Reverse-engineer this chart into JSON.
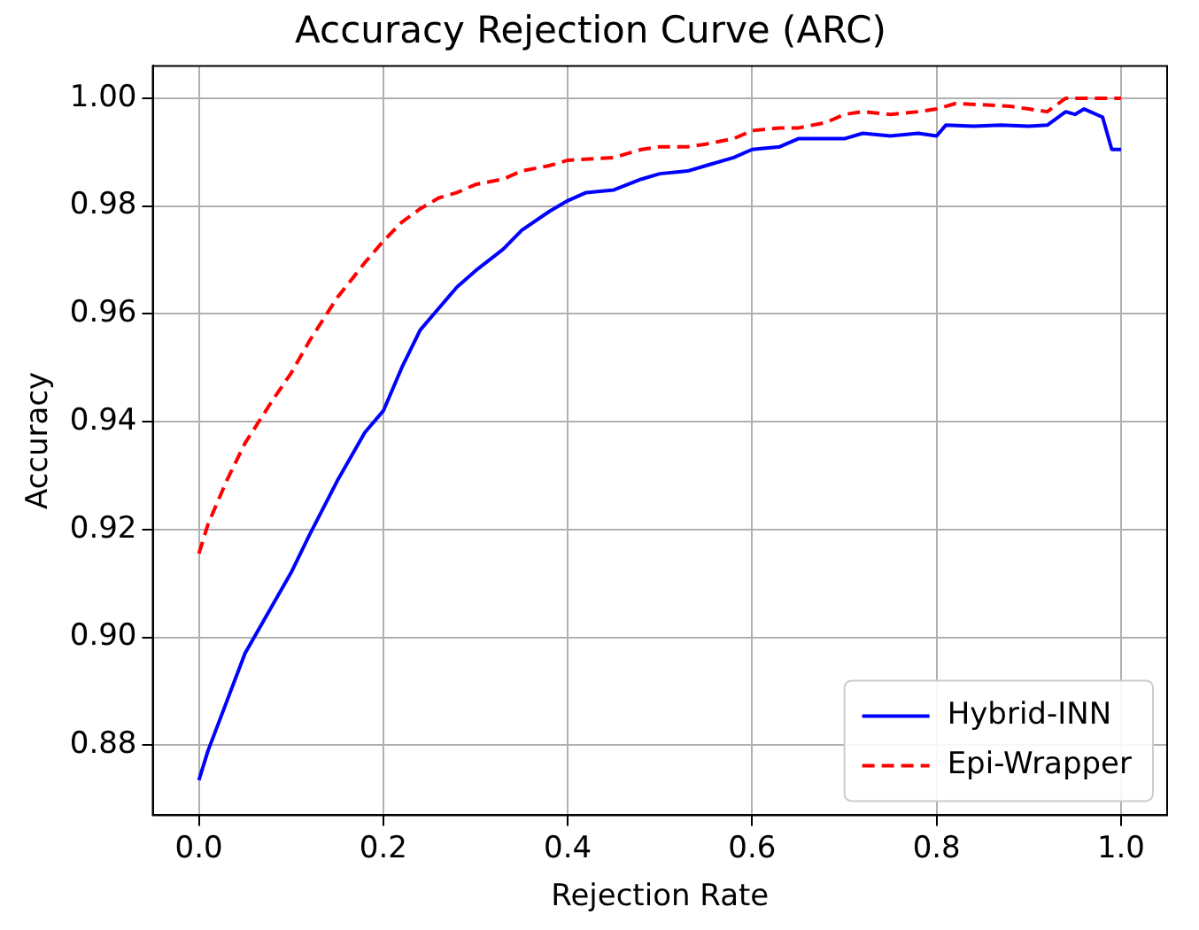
{
  "chart_data": {
    "type": "line",
    "title": "Accuracy Rejection Curve (ARC)",
    "xlabel": "Rejection Rate",
    "ylabel": "Accuracy",
    "series": [
      {
        "name": "Hybrid-INN",
        "color": "#0000ff",
        "line_style": "solid",
        "x": [
          0,
          0.01,
          0.03,
          0.05,
          0.08,
          0.1,
          0.12,
          0.15,
          0.18,
          0.2,
          0.22,
          0.24,
          0.26,
          0.28,
          0.3,
          0.33,
          0.35,
          0.38,
          0.4,
          0.42,
          0.45,
          0.48,
          0.5,
          0.53,
          0.55,
          0.58,
          0.6,
          0.63,
          0.65,
          0.68,
          0.7,
          0.72,
          0.75,
          0.78,
          0.8,
          0.81,
          0.84,
          0.87,
          0.9,
          0.92,
          0.94,
          0.95,
          0.96,
          0.98,
          0.99,
          1.0
        ],
        "values": [
          0.8735,
          0.879,
          0.888,
          0.897,
          0.906,
          0.912,
          0.919,
          0.929,
          0.938,
          0.942,
          0.95,
          0.957,
          0.961,
          0.965,
          0.968,
          0.972,
          0.9755,
          0.979,
          0.981,
          0.9825,
          0.983,
          0.985,
          0.986,
          0.9865,
          0.9875,
          0.989,
          0.9905,
          0.991,
          0.9925,
          0.9925,
          0.9925,
          0.9935,
          0.993,
          0.9935,
          0.993,
          0.995,
          0.9948,
          0.995,
          0.9948,
          0.995,
          0.9975,
          0.997,
          0.998,
          0.9965,
          0.9905,
          0.9905
        ]
      },
      {
        "name": "Epi-Wrapper",
        "color": "#ff0000",
        "line_style": "dashed",
        "x": [
          0,
          0.01,
          0.03,
          0.05,
          0.08,
          0.1,
          0.12,
          0.15,
          0.18,
          0.2,
          0.22,
          0.24,
          0.26,
          0.28,
          0.3,
          0.33,
          0.35,
          0.38,
          0.4,
          0.45,
          0.48,
          0.5,
          0.53,
          0.55,
          0.58,
          0.6,
          0.63,
          0.65,
          0.68,
          0.7,
          0.72,
          0.75,
          0.78,
          0.8,
          0.82,
          0.85,
          0.88,
          0.9,
          0.92,
          0.94,
          0.96,
          1.0
        ],
        "values": [
          0.9155,
          0.921,
          0.929,
          0.936,
          0.944,
          0.949,
          0.955,
          0.963,
          0.9695,
          0.9735,
          0.977,
          0.9795,
          0.9815,
          0.9825,
          0.984,
          0.985,
          0.9865,
          0.9875,
          0.9885,
          0.989,
          0.9905,
          0.991,
          0.991,
          0.9915,
          0.9925,
          0.994,
          0.9945,
          0.9945,
          0.9955,
          0.997,
          0.9975,
          0.997,
          0.9975,
          0.998,
          0.999,
          0.9988,
          0.9985,
          0.998,
          0.9975,
          1.0,
          1.0,
          1.0
        ]
      }
    ],
    "xlim": [
      -0.05,
      1.05
    ],
    "xticks": [
      {
        "value": 0,
        "label": "0.0"
      },
      0.2,
      0.4,
      0.6,
      0.8,
      {
        "value": 1,
        "label": "1.0"
      }
    ],
    "ylim": [
      0.867,
      1.006
    ],
    "yticks": [
      0.88,
      {
        "value": 0.9,
        "label": "0.90"
      },
      0.92,
      0.94,
      0.96,
      0.98,
      {
        "value": 1,
        "label": "1.00"
      }
    ],
    "grid": true,
    "legend": "bottom right",
    "marker": "none"
  }
}
